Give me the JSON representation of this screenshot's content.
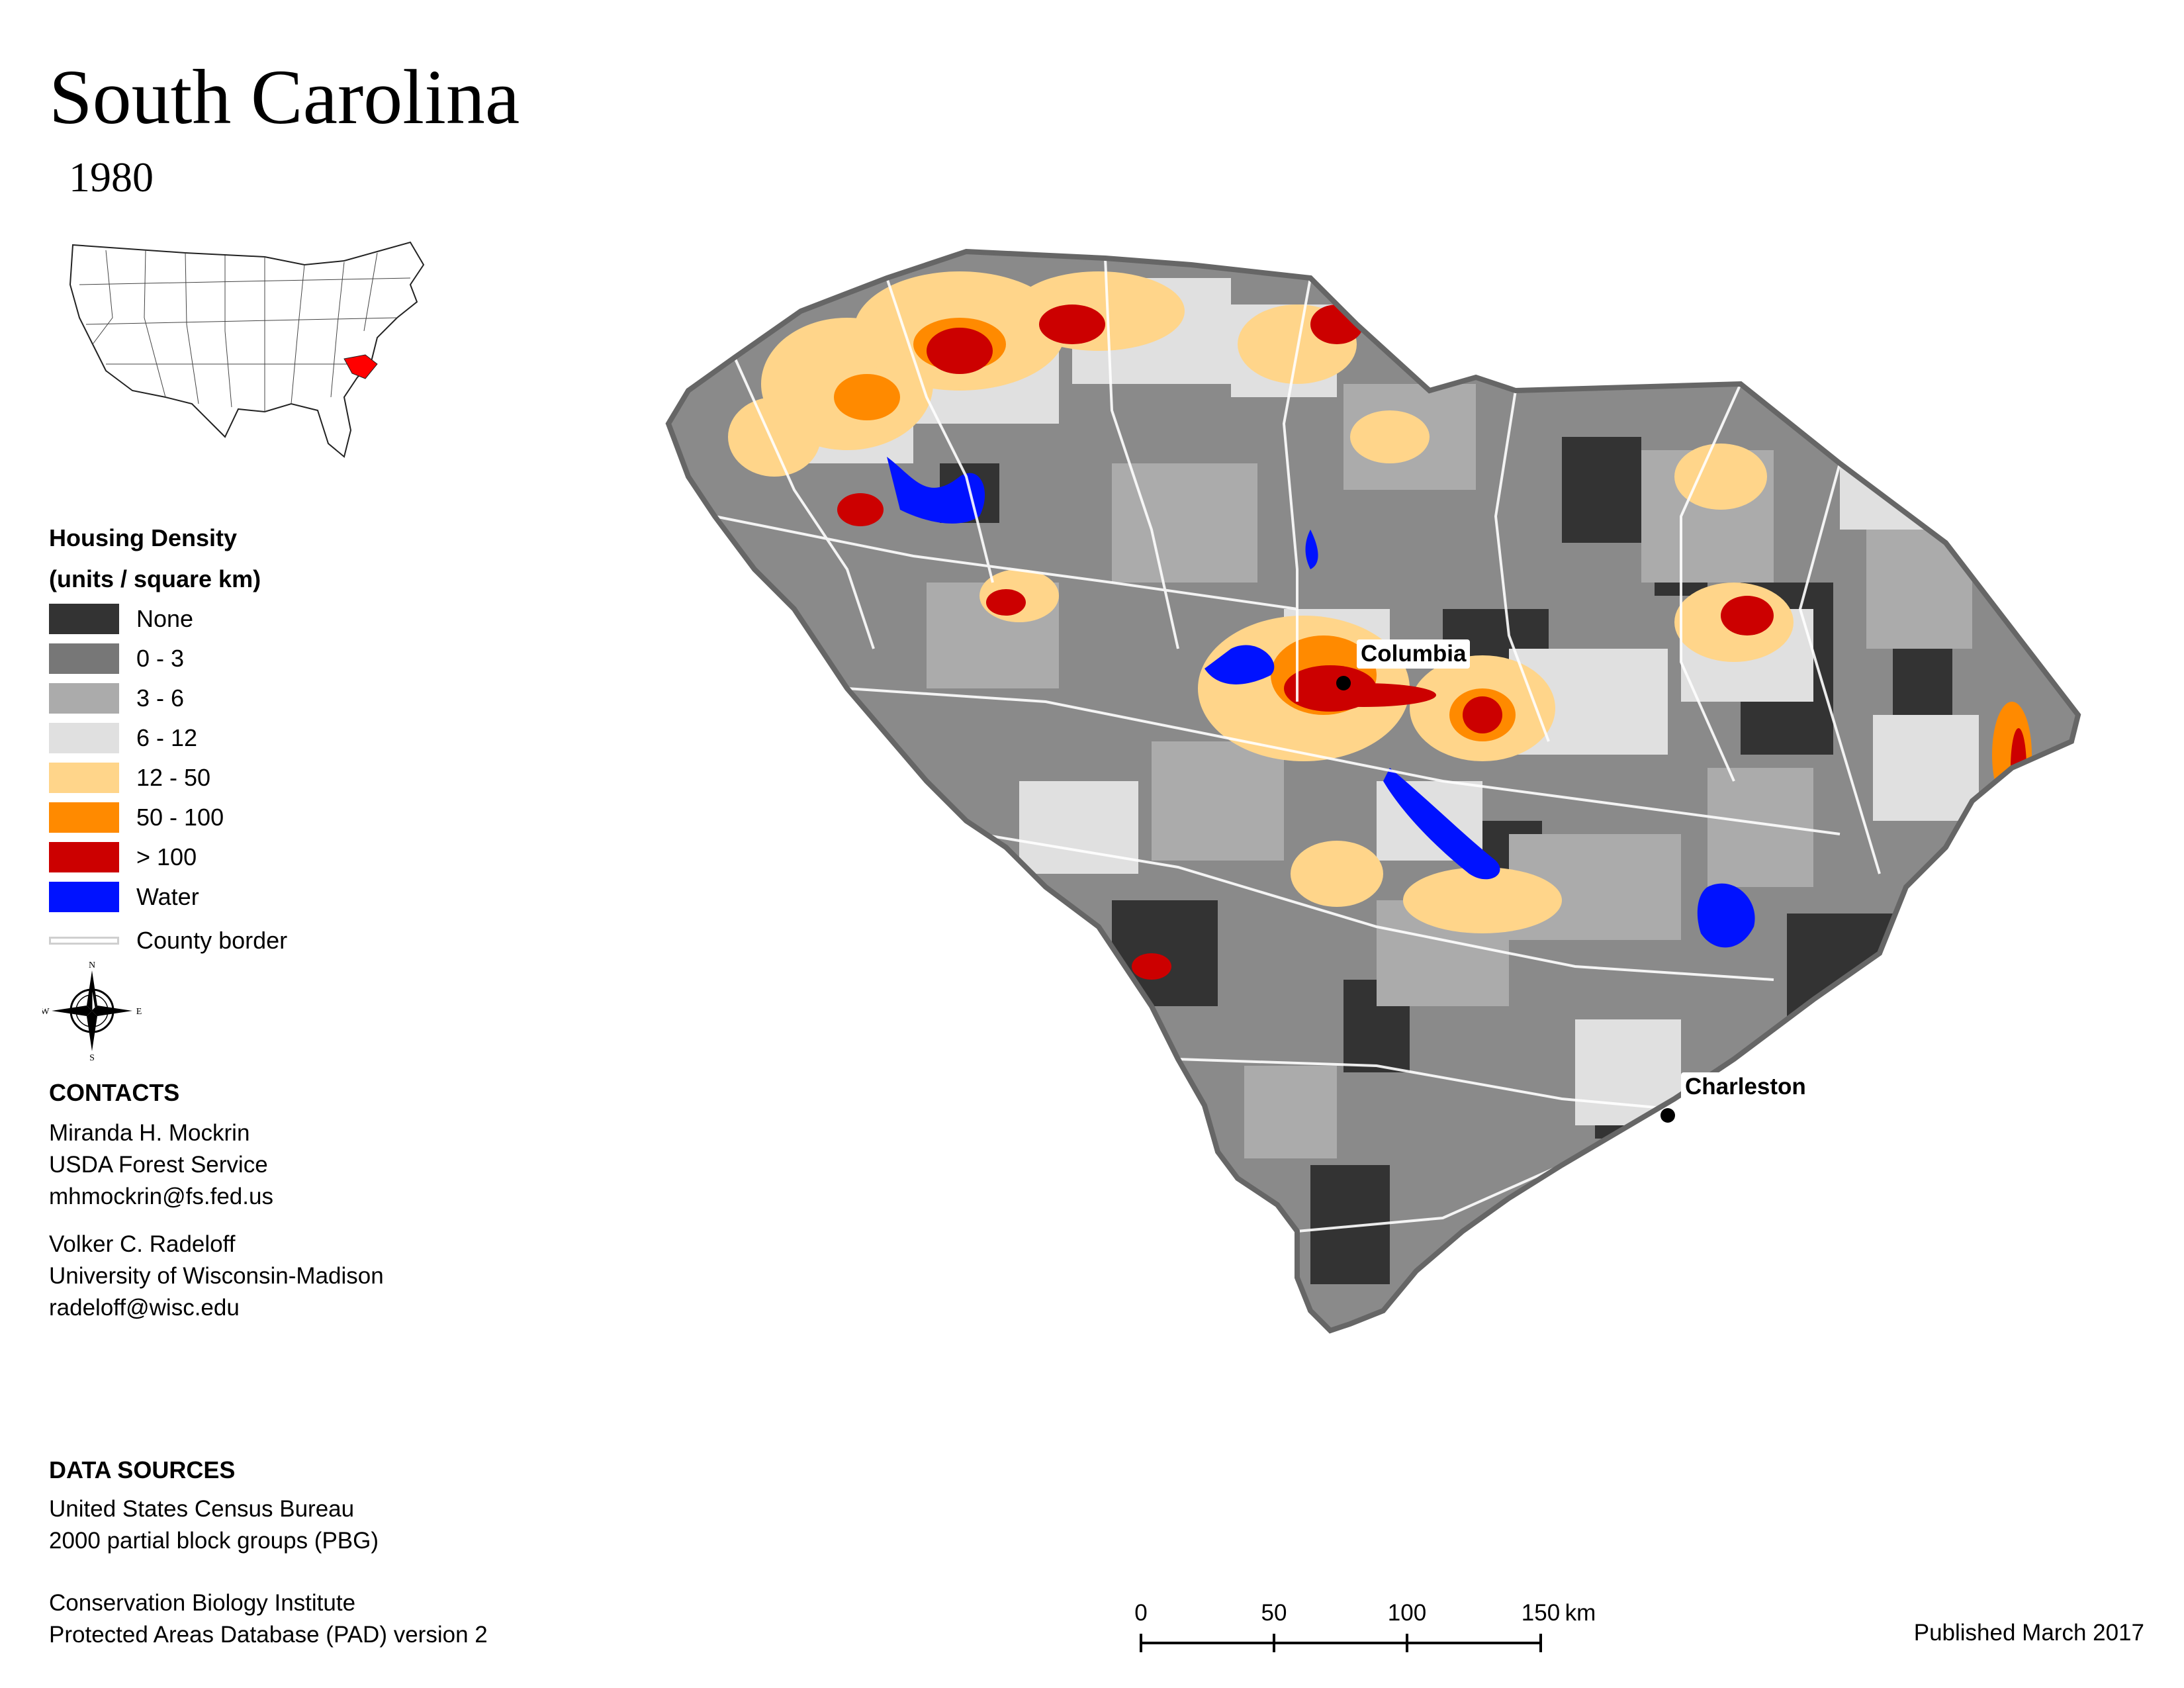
{
  "header": {
    "title": "South Carolina",
    "year": "1980"
  },
  "legend": {
    "title_line1": "Housing Density",
    "title_line2": "(units / square km)",
    "items": [
      {
        "label": "None",
        "color": "#333333"
      },
      {
        "label": "0 - 3",
        "color": "#777777"
      },
      {
        "label": "3 - 6",
        "color": "#ababab"
      },
      {
        "label": "6 - 12",
        "color": "#e0e0e0"
      },
      {
        "label": "12 - 50",
        "color": "#ffd58a"
      },
      {
        "label": "50 - 100",
        "color": "#ff8a00"
      },
      {
        "label": "> 100",
        "color": "#cc0000"
      },
      {
        "label": "Water",
        "color": "#0012ff"
      }
    ],
    "county_border_label": "County border"
  },
  "compass": {
    "n": "N",
    "s": "S",
    "e": "E",
    "w": "W"
  },
  "contacts": {
    "heading": "CONTACTS",
    "person1": {
      "name": "Miranda H. Mockrin",
      "org": "USDA Forest Service",
      "email": "mhmockrin@fs.fed.us"
    },
    "person2": {
      "name": "Volker C. Radeloff",
      "org": "University of Wisconsin-Madison",
      "email": "radeloff@wisc.edu"
    }
  },
  "data_sources": {
    "heading": "DATA SOURCES",
    "source1_line1": "United States Census Bureau",
    "source1_line2": "2000 partial block groups (PBG)",
    "source2_line1": "Conservation Biology Institute",
    "source2_line2": "Protected Areas Database (PAD) version 2"
  },
  "map": {
    "cities": [
      {
        "name": "Columbia"
      },
      {
        "name": "Charleston"
      }
    ],
    "state_fill": "#8a8a8a",
    "highlight_color": "#ff0000"
  },
  "scale_bar": {
    "ticks": [
      "0",
      "50",
      "100",
      "150"
    ],
    "unit": "km"
  },
  "footer": {
    "published": "Published March 2017"
  }
}
